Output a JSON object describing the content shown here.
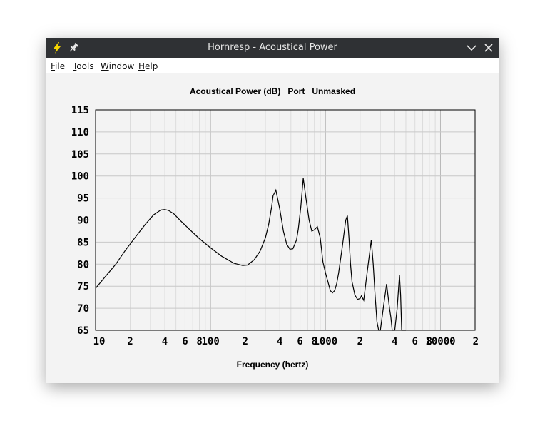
{
  "window": {
    "title": "Hornresp - Acoustical Power"
  },
  "menu": {
    "file": {
      "first": "F",
      "rest": "ile"
    },
    "tools": {
      "first": "T",
      "rest": "ools"
    },
    "window": {
      "first": "W",
      "rest": "indow"
    },
    "help": {
      "first": "H",
      "rest": "elp"
    }
  },
  "icons": {
    "app": "lightning-icon",
    "pin": "pin-icon",
    "minimize": "chevron-down-icon",
    "close": "close-icon"
  },
  "colors": {
    "titlebar": "#2f3134",
    "lightning": "#f5d400",
    "curve": "#000000",
    "grid": "#c8c8c8"
  },
  "chart_data": {
    "type": "line",
    "title": "Acoustical Power (dB)   Port   Unmasked",
    "xlabel": "Frequency (hertz)",
    "ylabel": "",
    "xscale": "log",
    "xlim": [
      10,
      20000
    ],
    "ylim": [
      65,
      115
    ],
    "yticks": [
      "115",
      "110",
      "105",
      "100",
      "95",
      "90",
      "85",
      "80",
      "75",
      "70",
      "65"
    ],
    "xticks": [
      {
        "v": 10,
        "t": "10"
      },
      {
        "v": 20,
        "t": "2"
      },
      {
        "v": 40,
        "t": "4"
      },
      {
        "v": 60,
        "t": "6"
      },
      {
        "v": 80,
        "t": "8"
      },
      {
        "v": 100,
        "t": "100"
      },
      {
        "v": 200,
        "t": "2"
      },
      {
        "v": 400,
        "t": "4"
      },
      {
        "v": 600,
        "t": "6"
      },
      {
        "v": 800,
        "t": "8"
      },
      {
        "v": 1000,
        "t": "1000"
      },
      {
        "v": 2000,
        "t": "2"
      },
      {
        "v": 4000,
        "t": "4"
      },
      {
        "v": 6000,
        "t": "6"
      },
      {
        "v": 8000,
        "t": "8"
      },
      {
        "v": 10000,
        "t": "10000"
      },
      {
        "v": 20000,
        "t": "2"
      }
    ],
    "grid": true,
    "series": [
      {
        "x": [
          10,
          12,
          15,
          18,
          22,
          27,
          32,
          37,
          40,
          43,
          48,
          55,
          65,
          80,
          100,
          125,
          160,
          190,
          210,
          240,
          270,
          300,
          320,
          340,
          350,
          370,
          400,
          430,
          460,
          490,
          520,
          560,
          580,
          610,
          640,
          680,
          720,
          760,
          800,
          850,
          900,
          950,
          1000,
          1050,
          1100,
          1150,
          1200,
          1250,
          1300,
          1400,
          1500,
          1550,
          1600,
          1650,
          1700,
          1800,
          1900,
          2000,
          2050,
          2100,
          2150,
          2300,
          2500,
          2600,
          2700,
          2800,
          2900,
          3000,
          3200,
          3400,
          3600,
          3700,
          3800,
          3900,
          4000,
          4200,
          4400,
          4500,
          4600,
          4800,
          5000
        ],
        "y": [
          74.5,
          77.0,
          80.0,
          83.0,
          86.0,
          89.0,
          91.2,
          92.3,
          92.4,
          92.2,
          91.4,
          89.8,
          88.0,
          85.8,
          83.7,
          81.8,
          80.2,
          79.7,
          79.8,
          81.0,
          83.0,
          86.0,
          89.0,
          93.0,
          95.5,
          96.8,
          92.5,
          87.5,
          84.5,
          83.4,
          83.5,
          85.5,
          88.0,
          93.0,
          99.5,
          94.5,
          90.0,
          87.5,
          87.8,
          88.5,
          86.0,
          80.5,
          78.0,
          76.0,
          74.0,
          73.5,
          74.0,
          75.5,
          78.0,
          84.0,
          90.0,
          91.0,
          86.0,
          80.0,
          76.0,
          73.0,
          72.0,
          72.2,
          72.8,
          72.3,
          71.8,
          78.0,
          85.5,
          80.0,
          73.0,
          67.0,
          65.0,
          65.0,
          70.5,
          75.5,
          70.0,
          68.0,
          65.0,
          65.0,
          65.0,
          70.0,
          77.5,
          73.0,
          65.0,
          65.0,
          65.0
        ]
      }
    ]
  }
}
